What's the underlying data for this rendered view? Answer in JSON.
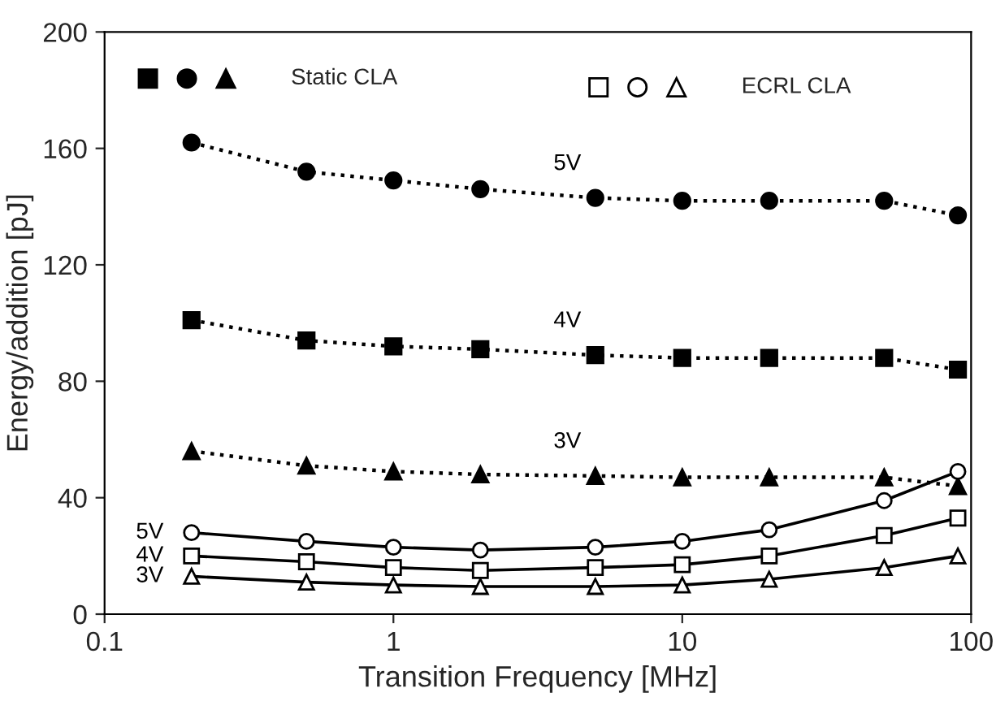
{
  "chart_data": {
    "type": "line",
    "xlabel": "Transition Frequency [MHz]",
    "ylabel": "Energy/addition [pJ]",
    "log": "x",
    "x": [
      0.2,
      0.5,
      1,
      2,
      5,
      10,
      20,
      50,
      90
    ],
    "xlim": [
      0.1,
      100
    ],
    "xticks": [
      0.1,
      1,
      10,
      100
    ],
    "ylim": [
      0,
      200
    ],
    "yticks": [
      0,
      40,
      80,
      120,
      160,
      200
    ],
    "series": [
      {
        "name": "5V",
        "color": "#000000",
        "marker": "circle",
        "line_style": "dotted",
        "values": [
          162,
          152,
          149,
          146,
          143,
          142,
          142,
          142,
          137
        ]
      },
      {
        "name": "4V",
        "color": "#000000",
        "marker": "square",
        "line_style": "dotted",
        "values": [
          101,
          94,
          92,
          91,
          89,
          88,
          88,
          88,
          84
        ]
      },
      {
        "name": "3V",
        "color": "#000000",
        "marker": "triangle",
        "line_style": "dotted",
        "values": [
          56,
          51,
          49,
          48,
          47.5,
          47,
          47,
          47,
          44
        ]
      },
      {
        "name": "5V",
        "color": "#000000",
        "marker": "circle",
        "line_style": "solid",
        "values": [
          28,
          25,
          23,
          22,
          23,
          25,
          29,
          39,
          49
        ]
      },
      {
        "name": "4V",
        "color": "#000000",
        "marker": "square",
        "line_style": "solid",
        "values": [
          20,
          18,
          16,
          15,
          16,
          17,
          20,
          27,
          33
        ]
      },
      {
        "name": "3V",
        "color": "#000000",
        "marker": "triangle",
        "line_style": "solid",
        "values": [
          13,
          11,
          10,
          9.5,
          9.5,
          10,
          12,
          16,
          20
        ]
      }
    ],
    "annotations": [
      "Static CLA",
      "ECRL CLA"
    ],
    "grid": false
  }
}
